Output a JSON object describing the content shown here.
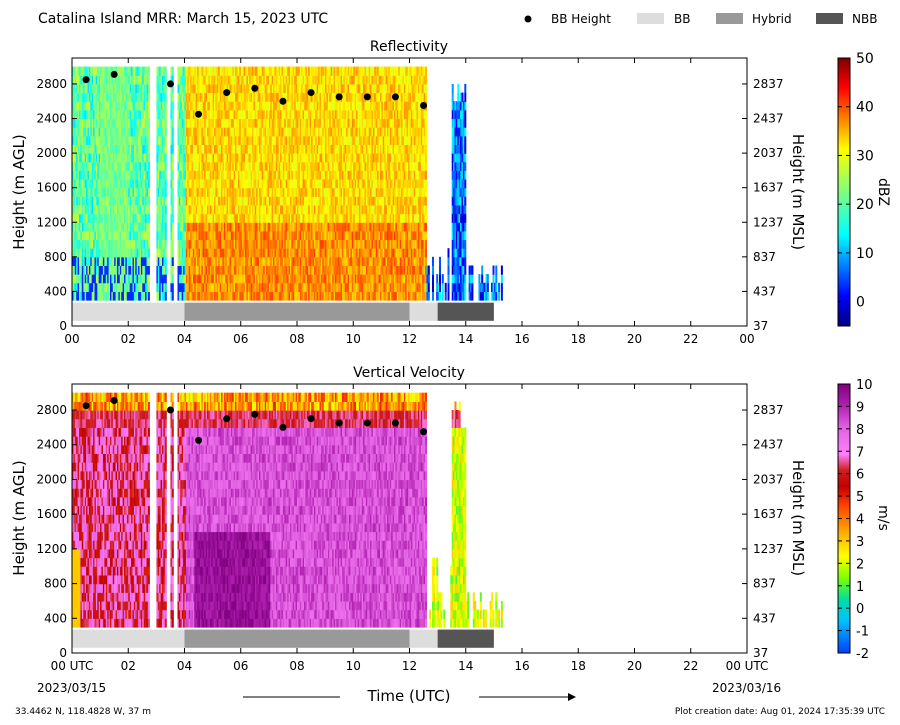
{
  "header": {
    "title": "Catalina Island MRR:  March 15, 2023 UTC",
    "legend": [
      {
        "label": "BB Height",
        "kind": "dot",
        "color": "#000000"
      },
      {
        "label": "BB",
        "kind": "box",
        "color": "#dddddd"
      },
      {
        "label": "Hybrid",
        "kind": "box",
        "color": "#999999"
      },
      {
        "label": "NBB",
        "kind": "box",
        "color": "#555555"
      }
    ]
  },
  "footer": {
    "location": "33.4462 N, 118.4828 W, 37 m",
    "created": "Plot creation date: Aug 01, 2024 17:35:39 UTC",
    "xlabel": "Time (UTC)",
    "start_date": "2023/03/15",
    "end_date": "2023/03/16"
  },
  "chart_data": [
    {
      "type": "heatmap",
      "title": "Reflectivity",
      "ylabel": "Height (m AGL)",
      "y2label": "Height (m MSL)",
      "xlim": [
        0,
        24
      ],
      "ylim": [
        0,
        3100
      ],
      "xticks": [
        "00",
        "02",
        "04",
        "06",
        "08",
        "10",
        "12",
        "14",
        "16",
        "18",
        "20",
        "22",
        "00"
      ],
      "yticks": [
        0,
        400,
        800,
        1200,
        1600,
        2000,
        2400,
        2800
      ],
      "y2ticks": [
        "37",
        "437",
        "837",
        "1237",
        "1637",
        "2037",
        "2437",
        "2837"
      ],
      "colorbar": {
        "label": "dBZ",
        "min": -5,
        "max": 50,
        "ticks": [
          0,
          10,
          20,
          30,
          40,
          50
        ],
        "colormap": "jet"
      },
      "bb_height": {
        "x": [
          0.5,
          1.5,
          3.5,
          4.5,
          5.5,
          6.5,
          7.5,
          8.5,
          9.5,
          10.5,
          11.5,
          12.5
        ],
        "y": [
          2850,
          2910,
          2800,
          2450,
          2700,
          2750,
          2600,
          2700,
          2650,
          2650,
          2650,
          2550
        ]
      },
      "bb_type": [
        {
          "start": 0,
          "end": 4,
          "type": "BB"
        },
        {
          "start": 4,
          "end": 12,
          "type": "Hybrid"
        },
        {
          "start": 12,
          "end": 13,
          "type": "BB"
        },
        {
          "start": 13,
          "end": 15,
          "type": "NBB"
        }
      ]
    },
    {
      "type": "heatmap",
      "title": "Vertical Velocity",
      "ylabel": "Height (m AGL)",
      "y2label": "Height (m MSL)",
      "xlim": [
        0,
        24
      ],
      "ylim": [
        0,
        3100
      ],
      "xticks": [
        "00 UTC",
        "02",
        "04",
        "06",
        "08",
        "10",
        "12",
        "14",
        "16",
        "18",
        "20",
        "22",
        "00 UTC"
      ],
      "yticks": [
        0,
        400,
        800,
        1200,
        1600,
        2000,
        2400,
        2800
      ],
      "y2ticks": [
        "37",
        "437",
        "837",
        "1237",
        "1637",
        "2037",
        "2437",
        "2837"
      ],
      "colorbar": {
        "label": "m/s",
        "min": -2,
        "max": 10,
        "ticks": [
          -2,
          -1,
          0,
          1,
          2,
          3,
          4,
          5,
          6,
          7,
          8,
          9,
          10
        ],
        "colormap": "velocity"
      },
      "bb_height": {
        "x": [
          0.5,
          1.5,
          3.5,
          4.5,
          5.5,
          6.5,
          7.5,
          8.5,
          9.5,
          10.5,
          11.5,
          12.5
        ],
        "y": [
          2850,
          2910,
          2800,
          2450,
          2700,
          2750,
          2600,
          2700,
          2650,
          2650,
          2650,
          2550
        ]
      },
      "bb_type": [
        {
          "start": 0,
          "end": 4,
          "type": "BB"
        },
        {
          "start": 4,
          "end": 12,
          "type": "Hybrid"
        },
        {
          "start": 12,
          "end": 13,
          "type": "BB"
        },
        {
          "start": 13,
          "end": 15,
          "type": "NBB"
        }
      ]
    }
  ]
}
